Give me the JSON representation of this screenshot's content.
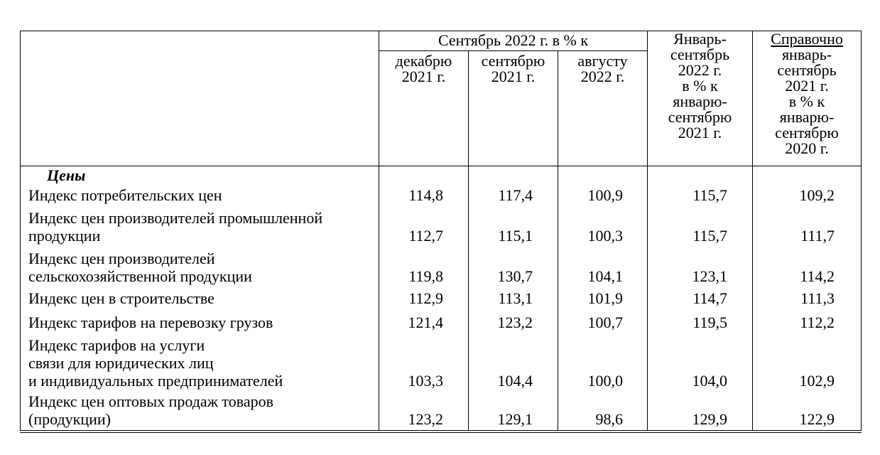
{
  "header": {
    "group_label": "Сентябрь 2022 г. в % к",
    "sub_columns": [
      "декабрю\n2021 г.",
      "сентябрю\n2021 г.",
      "августу\n2022 г."
    ],
    "col_jan_sep": "Январь-\nсентябрь\n2022 г.\nв % к\nянварю-\nсентябрю\n2021 г.",
    "col_ref_title": "Справочно",
    "col_ref_body": "январь-\nсентябрь\n2021 г.\nв % к\nянварю-\nсентябрю\n2020 г."
  },
  "section_title": "Цены",
  "rows": [
    {
      "label": "Индекс потребительских цен",
      "values": [
        "114,8",
        "117,4",
        "100,9",
        "115,7",
        "109,2"
      ]
    },
    {
      "label": "Индекс цен производителей промышленной\nпродукции",
      "values": [
        "112,7",
        "115,1",
        "100,3",
        "115,7",
        "111,7"
      ]
    },
    {
      "label": "Индекс цен производителей\nсельскохозяйственной продукции",
      "values": [
        "119,8",
        "130,7",
        "104,1",
        "123,1",
        "114,2"
      ]
    },
    {
      "label": "Индекс цен в строительстве",
      "values": [
        "112,9",
        "113,1",
        "101,9",
        "114,7",
        "111,3"
      ]
    },
    {
      "label": "Индекс тарифов на перевозку грузов",
      "values": [
        "121,4",
        "123,2",
        "100,7",
        "119,5",
        "112,2"
      ]
    },
    {
      "label": "Индекс тарифов на услуги\nсвязи для юридических лиц\nи индивидуальных предпринимателей",
      "values": [
        "103,3",
        "104,4",
        "100,0",
        "104,0",
        "102,9"
      ]
    },
    {
      "label": "Индекс цен оптовых продаж товаров\n(продукции)",
      "values": [
        "123,2",
        "129,1",
        "98,6",
        "129,9",
        "122,9"
      ]
    }
  ]
}
